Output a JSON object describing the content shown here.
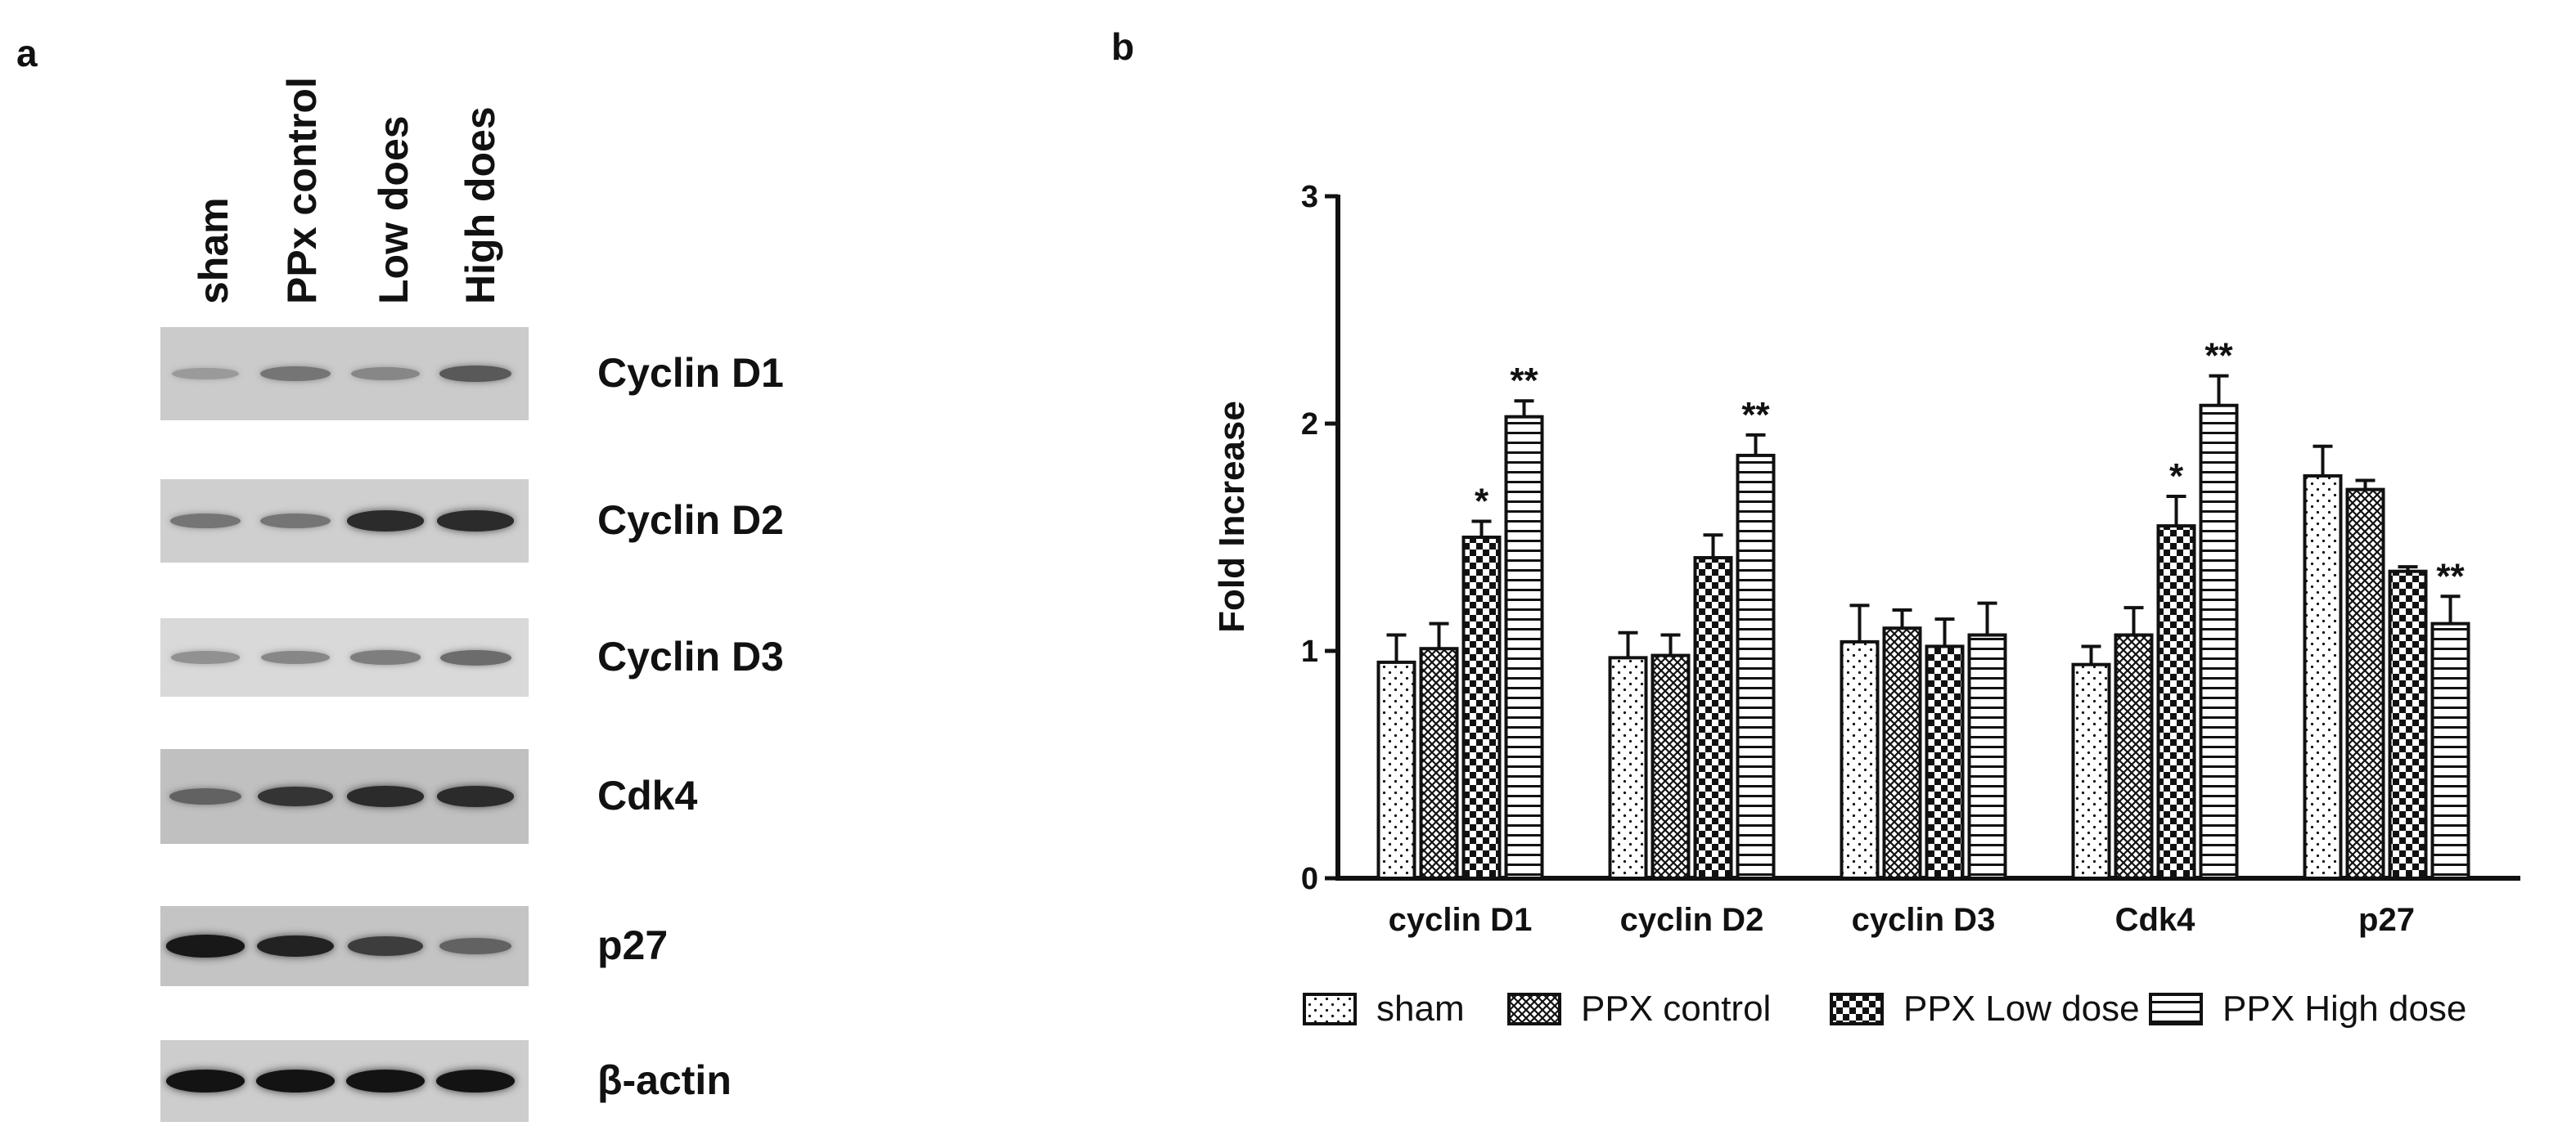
{
  "panel_a": {
    "label": "a",
    "lanes": [
      "sham",
      "PPx control",
      "Low does",
      "High does"
    ],
    "blots": [
      {
        "name": "Cyclin D1",
        "bg": "#cbcbcb",
        "intensity": [
          0.25,
          0.45,
          0.35,
          0.6
        ]
      },
      {
        "name": "Cyclin D2",
        "bg": "#cfcfcf",
        "intensity": [
          0.45,
          0.45,
          0.85,
          0.85
        ]
      },
      {
        "name": "Cyclin D3",
        "bg": "#d9d9d9",
        "intensity": [
          0.3,
          0.35,
          0.4,
          0.5
        ]
      },
      {
        "name": "Cdk4",
        "bg": "#c0c0c0",
        "intensity": [
          0.55,
          0.8,
          0.85,
          0.85
        ]
      },
      {
        "name": "p27",
        "bg": "#c4c4c4",
        "intensity": [
          0.95,
          0.9,
          0.75,
          0.55
        ]
      },
      {
        "name": "β-actin",
        "bg": "#cdcdcd",
        "intensity": [
          0.98,
          0.98,
          0.98,
          0.98
        ]
      }
    ]
  },
  "chart_data": {
    "panel_label": "b",
    "type": "bar",
    "title": "",
    "xlabel": "",
    "ylabel": "Fold Increase",
    "ylim": [
      0,
      3
    ],
    "yticks": [
      0,
      1,
      2,
      3
    ],
    "categories": [
      "cyclin D1",
      "cyclin D2",
      "cyclin D3",
      "Cdk4",
      "p27"
    ],
    "series": [
      {
        "name": "sham",
        "pattern": "dots",
        "values": [
          0.95,
          0.97,
          1.04,
          0.94,
          1.77
        ],
        "errors": [
          0.12,
          0.11,
          0.16,
          0.08,
          0.13
        ],
        "annotations": [
          "",
          "",
          "",
          "",
          ""
        ]
      },
      {
        "name": "PPX control",
        "pattern": "crosshatch",
        "values": [
          1.01,
          0.98,
          1.1,
          1.07,
          1.71
        ],
        "errors": [
          0.11,
          0.09,
          0.08,
          0.12,
          0.04
        ],
        "annotations": [
          "",
          "",
          "",
          "",
          ""
        ]
      },
      {
        "name": "PPX Low dose",
        "pattern": "checker",
        "values": [
          1.5,
          1.41,
          1.02,
          1.55,
          1.35
        ],
        "errors": [
          0.07,
          0.1,
          0.12,
          0.13,
          0.02
        ],
        "annotations": [
          "*",
          "",
          "",
          "*",
          ""
        ]
      },
      {
        "name": "PPX High dose",
        "pattern": "hlines",
        "values": [
          2.03,
          1.86,
          1.07,
          2.08,
          1.12
        ],
        "errors": [
          0.07,
          0.09,
          0.14,
          0.13,
          0.12
        ],
        "annotations": [
          "**",
          "**",
          "",
          "**",
          "**"
        ]
      }
    ],
    "legend_position": "bottom"
  }
}
